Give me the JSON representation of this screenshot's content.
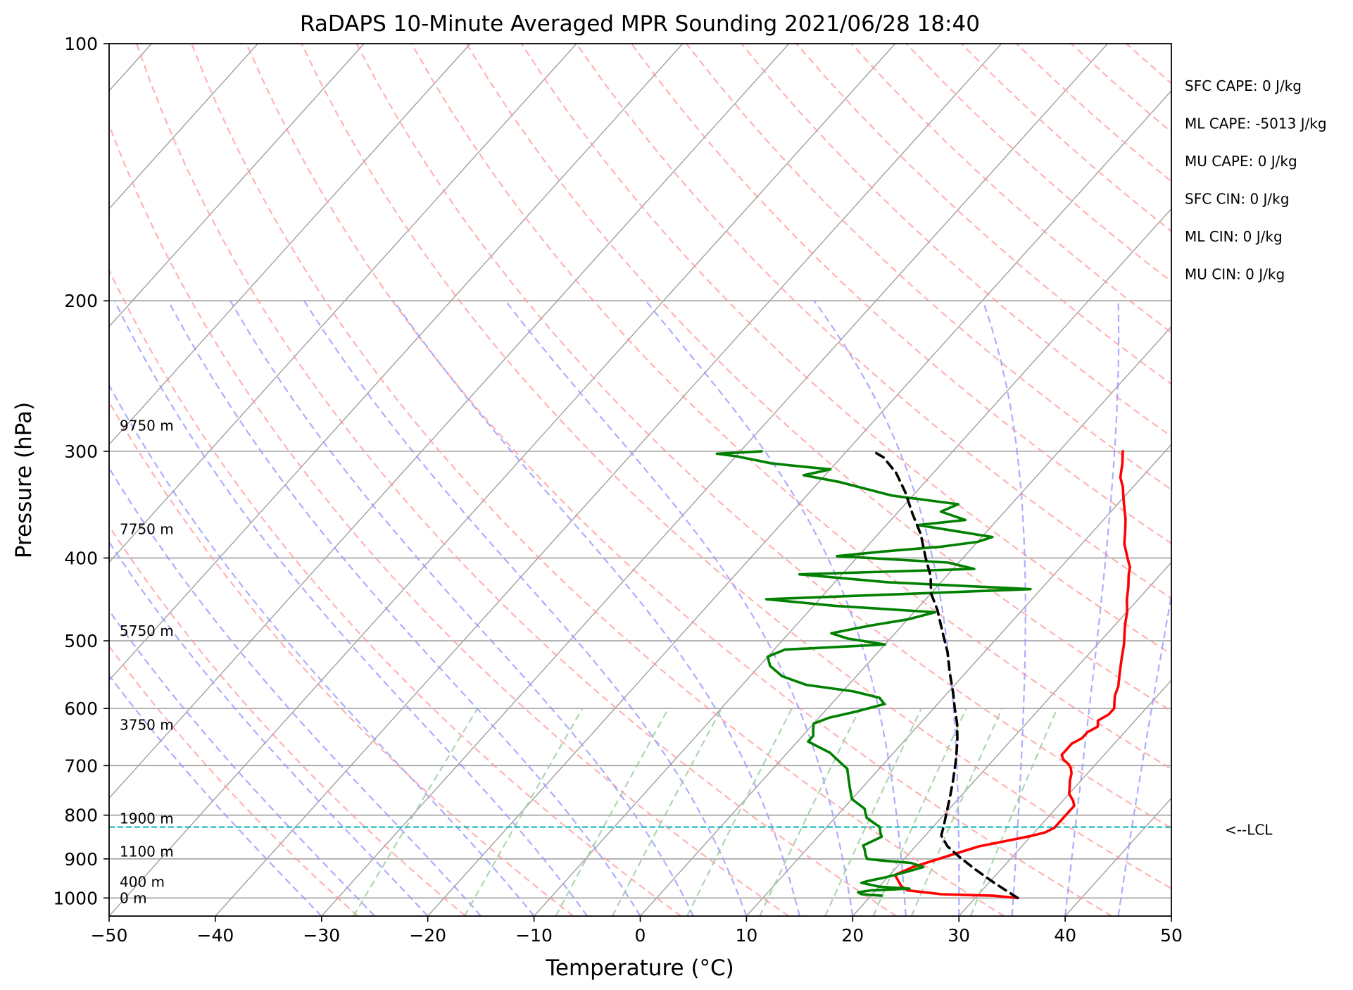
{
  "chart_data": {
    "type": "line",
    "title": "RaDAPS 10-Minute Averaged MPR Sounding 2021/06/28 18:40",
    "xlabel": "Temperature (°C)",
    "ylabel": "Pressure (hPa)",
    "xlim": [
      -50,
      50
    ],
    "ylim": [
      1050,
      100
    ],
    "y_scale": "log",
    "x_ticks": [
      "−50",
      "−40",
      "−30",
      "−20",
      "−10",
      "0",
      "10",
      "20",
      "30",
      "40",
      "50"
    ],
    "y_ticks": [
      "100",
      "200",
      "300",
      "400",
      "500",
      "600",
      "700",
      "800",
      "900",
      "1000"
    ],
    "grid": true,
    "series": [
      {
        "key": "temperature",
        "color": "#ff0000",
        "points": [
          [
            34,
            1000
          ],
          [
            31.5,
            994
          ],
          [
            26.5,
            990
          ],
          [
            24.5,
            984
          ],
          [
            23,
            980
          ],
          [
            22,
            968
          ],
          [
            20.5,
            940
          ],
          [
            21.5,
            920
          ],
          [
            23,
            903
          ],
          [
            24.5,
            886
          ],
          [
            26,
            870
          ],
          [
            28,
            858
          ],
          [
            30,
            846
          ],
          [
            31,
            838
          ],
          [
            31.5,
            828
          ],
          [
            31.5,
            818
          ],
          [
            31.5,
            804
          ],
          [
            31.5,
            790
          ],
          [
            31.5,
            780
          ],
          [
            31,
            770
          ],
          [
            30,
            755
          ],
          [
            29.5,
            742
          ],
          [
            29,
            730
          ],
          [
            28.5,
            715
          ],
          [
            28,
            705
          ],
          [
            27.5,
            698
          ],
          [
            26.5,
            688
          ],
          [
            26,
            680
          ],
          [
            26,
            670
          ],
          [
            26,
            660
          ],
          [
            26.5,
            650
          ],
          [
            26.5,
            640
          ],
          [
            27,
            630
          ],
          [
            26.5,
            620
          ],
          [
            27,
            610
          ],
          [
            27,
            600
          ],
          [
            26.5,
            590
          ],
          [
            26,
            580
          ],
          [
            25.5,
            565
          ],
          [
            24.5,
            545
          ],
          [
            23.5,
            525
          ],
          [
            22.5,
            505
          ],
          [
            21,
            480
          ],
          [
            20,
            462
          ],
          [
            19,
            448
          ],
          [
            18,
            432
          ],
          [
            17.5,
            425
          ],
          [
            17,
            418
          ],
          [
            16.5,
            410
          ],
          [
            15.5,
            400
          ],
          [
            14,
            385
          ],
          [
            13,
            372
          ],
          [
            12,
            360
          ],
          [
            11,
            350
          ],
          [
            10,
            340
          ],
          [
            9,
            330
          ],
          [
            8,
            322
          ],
          [
            7.5,
            316
          ],
          [
            7,
            310
          ],
          [
            6.5,
            305
          ],
          [
            6,
            300
          ]
        ]
      },
      {
        "key": "dewpoint",
        "color": "#008000",
        "points": [
          [
            21,
            994
          ],
          [
            19,
            990
          ],
          [
            18.5,
            985
          ],
          [
            19.5,
            980
          ],
          [
            21,
            978
          ],
          [
            23,
            975
          ],
          [
            21,
            972
          ],
          [
            20,
            970
          ],
          [
            19,
            965
          ],
          [
            18,
            960
          ],
          [
            18.5,
            955
          ],
          [
            19.5,
            948
          ],
          [
            20.5,
            940
          ],
          [
            21.5,
            930
          ],
          [
            22.5,
            920
          ],
          [
            21,
            910
          ],
          [
            18,
            904
          ],
          [
            16.5,
            900
          ],
          [
            16,
            890
          ],
          [
            15.5,
            878
          ],
          [
            15,
            868
          ],
          [
            15.5,
            858
          ],
          [
            16,
            848
          ],
          [
            15.5,
            838
          ],
          [
            15,
            826
          ],
          [
            14,
            816
          ],
          [
            13,
            806
          ],
          [
            12.5,
            796
          ],
          [
            12,
            786
          ],
          [
            11,
            776
          ],
          [
            10,
            766
          ],
          [
            9.5,
            756
          ],
          [
            9,
            746
          ],
          [
            8.5,
            736
          ],
          [
            8,
            726
          ],
          [
            7.5,
            716
          ],
          [
            7,
            706
          ],
          [
            6,
            696
          ],
          [
            5,
            686
          ],
          [
            4,
            676
          ],
          [
            2.5,
            666
          ],
          [
            1,
            656
          ],
          [
            1,
            646
          ],
          [
            0.5,
            636
          ],
          [
            0,
            625
          ],
          [
            1,
            615
          ],
          [
            3,
            605
          ],
          [
            5,
            593
          ],
          [
            4,
            583
          ],
          [
            1,
            573
          ],
          [
            -4,
            563
          ],
          [
            -7,
            550
          ],
          [
            -9,
            535
          ],
          [
            -10,
            522
          ],
          [
            -9,
            512
          ],
          [
            0,
            505
          ],
          [
            -4,
            497
          ],
          [
            -6,
            490
          ],
          [
            -3,
            480
          ],
          [
            0,
            472
          ],
          [
            2,
            463
          ],
          [
            -8,
            455
          ],
          [
            -15,
            447
          ],
          [
            -3,
            441
          ],
          [
            9,
            435
          ],
          [
            -5,
            427
          ],
          [
            -14,
            418
          ],
          [
            2,
            412
          ],
          [
            -1,
            405
          ],
          [
            -12,
            398
          ],
          [
            -8,
            393
          ],
          [
            -3,
            388
          ],
          [
            0,
            383
          ],
          [
            1,
            378
          ],
          [
            -3,
            372
          ],
          [
            -7,
            366
          ],
          [
            -3,
            361
          ],
          [
            -6,
            353
          ],
          [
            -5,
            346
          ],
          [
            -12,
            338
          ],
          [
            -15,
            332
          ],
          [
            -18,
            326
          ],
          [
            -22,
            320
          ],
          [
            -20,
            315
          ],
          [
            -26,
            310
          ],
          [
            -28,
            307
          ],
          [
            -30,
            304
          ],
          [
            -32,
            302
          ],
          [
            -28,
            300
          ]
        ]
      },
      {
        "key": "parcel",
        "color": "#000000",
        "dashed": true,
        "points": [
          [
            34,
            1000
          ],
          [
            30.5,
            960
          ],
          [
            27.5,
            925
          ],
          [
            25,
            895
          ],
          [
            23,
            870
          ],
          [
            21.5,
            845
          ],
          [
            21,
            826
          ],
          [
            19,
            760
          ],
          [
            18,
            730
          ],
          [
            16.5,
            690
          ],
          [
            15,
            655
          ],
          [
            13.5,
            625
          ],
          [
            12,
            600
          ],
          [
            10.5,
            575
          ],
          [
            8.5,
            545
          ],
          [
            6.5,
            515
          ],
          [
            4.5,
            490
          ],
          [
            2,
            460
          ],
          [
            0,
            440
          ],
          [
            -1.5,
            420
          ],
          [
            -3.5,
            400
          ],
          [
            -6,
            375
          ],
          [
            -8.5,
            355
          ],
          [
            -11,
            335
          ],
          [
            -13.5,
            318
          ],
          [
            -16,
            305
          ],
          [
            -17.5,
            300
          ]
        ]
      }
    ],
    "lcl_pressure": 826,
    "lcl_label": "<--LCL",
    "altitude_labels": [
      {
        "text": "9750 m",
        "p": 280
      },
      {
        "text": "7750 m",
        "p": 370
      },
      {
        "text": "5750 m",
        "p": 487
      },
      {
        "text": "3750 m",
        "p": 627
      },
      {
        "text": "1900 m",
        "p": 807
      },
      {
        "text": "1100 m",
        "p": 883
      },
      {
        "text": "400 m",
        "p": 958
      },
      {
        "text": "0 m",
        "p": 1000
      }
    ],
    "indices": [
      "SFC CAPE: 0 J/kg",
      "ML CAPE: -5013 J/kg",
      "MU CAPE: 0 J/kg",
      "SFC CIN: 0 J/kg",
      "ML CIN: 0 J/kg",
      "MU CIN: 0 J/kg"
    ],
    "colors": {
      "isotherm": "#a0a0a0",
      "dry_adiabat": "#ff9999",
      "moist_adiabat": "#9999ff",
      "mixing_ratio": "#99cc99",
      "lcl_line": "#00b4b4"
    }
  }
}
